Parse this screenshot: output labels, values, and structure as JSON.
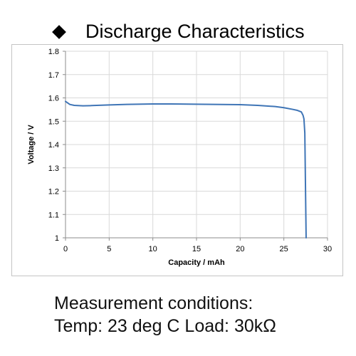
{
  "title": "Discharge Characteristics",
  "conditions": {
    "line1": "Measurement conditions:",
    "line2": "Temp: 23 deg C  Load: 30kΩ"
  },
  "colors": {
    "series": "#3f75b6",
    "grid": "#d9d9d9",
    "axis": "#8c8c8c",
    "text": "#000000"
  },
  "chart_data": {
    "type": "line",
    "title": "Discharge Characteristics",
    "xlabel": "Capacity  /  mAh",
    "ylabel": "Voltage  /  V",
    "xlim": [
      0,
      30
    ],
    "ylim": [
      1,
      1.8
    ],
    "xticks": [
      0,
      5,
      10,
      15,
      20,
      25,
      30
    ],
    "yticks": [
      1,
      1.1,
      1.2,
      1.3,
      1.4,
      1.5,
      1.6,
      1.7,
      1.8
    ],
    "xtick_labels": [
      "0",
      "5",
      "10",
      "15",
      "20",
      "25",
      "30"
    ],
    "ytick_labels": [
      "1",
      "1.1",
      "1.2",
      "1.3",
      "1.4",
      "1.5",
      "1.6",
      "1.7",
      "1.8"
    ],
    "grid": true,
    "legend": "none",
    "series": [
      {
        "x": [
          0,
          0.5,
          1,
          2,
          3,
          5,
          7,
          10,
          12,
          15,
          17,
          20,
          22,
          24,
          25,
          26,
          26.5,
          27,
          27.2,
          27.3,
          27.4,
          27.45,
          27.5,
          27.55
        ],
        "y": [
          1.585,
          1.572,
          1.568,
          1.566,
          1.567,
          1.57,
          1.572,
          1.574,
          1.574,
          1.573,
          1.572,
          1.571,
          1.568,
          1.563,
          1.558,
          1.551,
          1.547,
          1.54,
          1.525,
          1.51,
          1.45,
          1.3,
          1.15,
          1.0
        ]
      }
    ]
  }
}
